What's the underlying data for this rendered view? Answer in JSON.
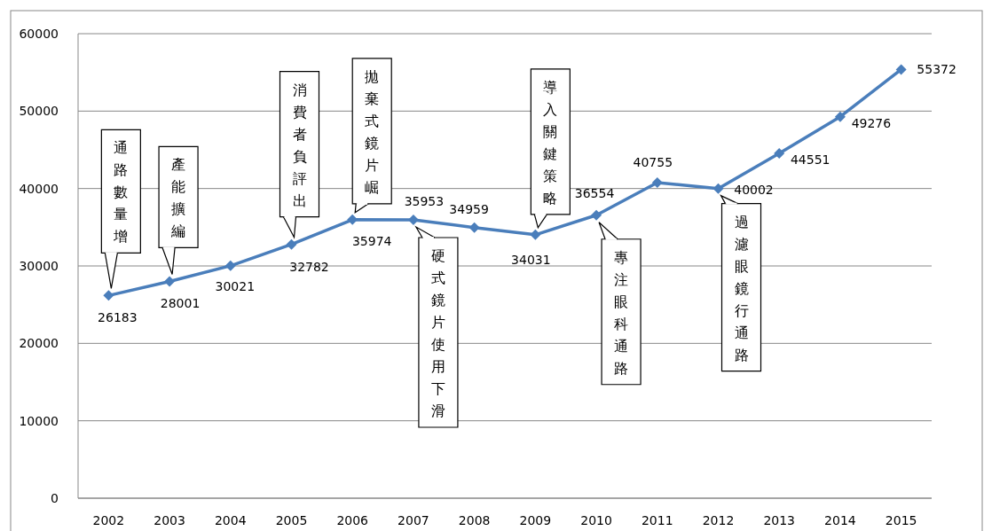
{
  "chart_data": {
    "type": "line",
    "categories": [
      "2002",
      "2003",
      "2004",
      "2005",
      "2006",
      "2007",
      "2008",
      "2009",
      "2010",
      "2011",
      "2012",
      "2013",
      "2014",
      "2015"
    ],
    "series": [
      {
        "color": "#4a7ebb",
        "values": [
          26183,
          28001,
          30021,
          32782,
          35974,
          35953,
          34959,
          34031,
          36554,
          40755,
          40002,
          44551,
          49276,
          55372
        ]
      }
    ],
    "ylim": [
      0,
      60000
    ],
    "yticks": [
      0,
      10000,
      20000,
      30000,
      40000,
      50000,
      60000
    ],
    "grid": "y",
    "marker": "diamond",
    "line_style": "solid",
    "data_labels": true,
    "annotations": [
      {
        "text": "通路數量增",
        "x": "2002",
        "y": 26183
      },
      {
        "text": "產能擴編",
        "x": "2003",
        "y": 28001
      },
      {
        "text": "消費者負評出",
        "x": "2005",
        "y": 32782
      },
      {
        "text": "拋棄式鏡片崛",
        "x": "2006",
        "y": 35974
      },
      {
        "text": "硬式鏡片使用下滑",
        "x": "2007",
        "y": 35953
      },
      {
        "text": "導入關鍵策略",
        "x": "2009",
        "y": 34031
      },
      {
        "text": "專注眼科通路",
        "x": "2010",
        "y": 36554
      },
      {
        "text": "過濾眼鏡行通路",
        "x": "2012",
        "y": 40002
      }
    ]
  }
}
